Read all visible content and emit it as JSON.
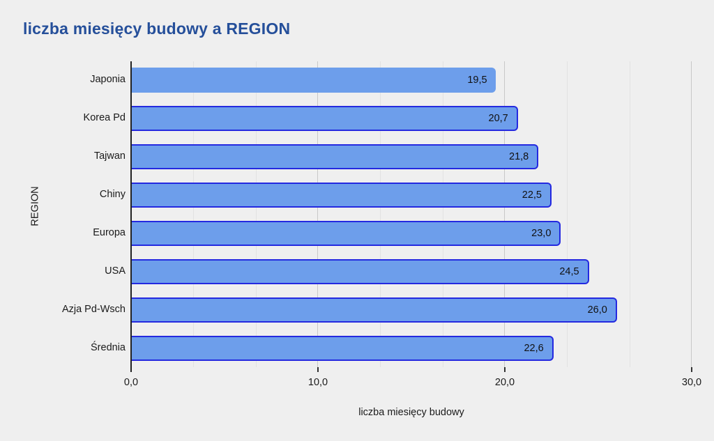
{
  "page": {
    "background": "#efefef"
  },
  "chart": {
    "title": "liczba miesięcy budowy a REGION",
    "title_color": "#254f9a",
    "x_axis_title": "liczba miesięcy budowy",
    "y_axis_title": "REGION",
    "bar_fill_color": "#6d9eeb",
    "bar_border_color": "#2429e0",
    "axis_line_color": "#222222",
    "major_gridline_color": "#c8c8c8",
    "minor_gridline_color": "#e2e2e2",
    "text_color": "#1a1a1a"
  },
  "chart_data": {
    "type": "bar",
    "orientation": "horizontal",
    "title": "liczba miesięcy budowy a REGION",
    "xlabel": "liczba miesięcy budowy",
    "ylabel": "REGION",
    "categories": [
      "Japonia",
      "Korea Pd",
      "Tajwan",
      "Chiny",
      "Europa",
      "USA",
      "Azja Pd-Wsch",
      "Średnia"
    ],
    "values": [
      19.5,
      20.7,
      21.8,
      22.5,
      23.0,
      24.5,
      26.0,
      22.6
    ],
    "value_labels": [
      "19,5",
      "20,7",
      "21,8",
      "22,5",
      "23,0",
      "24,5",
      "26,0",
      "22,6"
    ],
    "xlim": [
      0,
      30
    ],
    "x_ticks": [
      0,
      10,
      20,
      30
    ],
    "x_tick_labels": [
      "0,0",
      "10,0",
      "20,0",
      "30,0"
    ],
    "minor_gridlines": [
      3.3333,
      6.6667,
      13.3333,
      16.6667,
      23.3333,
      26.6667
    ],
    "grid": true,
    "legend": "none",
    "bars_without_border": [
      0
    ]
  }
}
